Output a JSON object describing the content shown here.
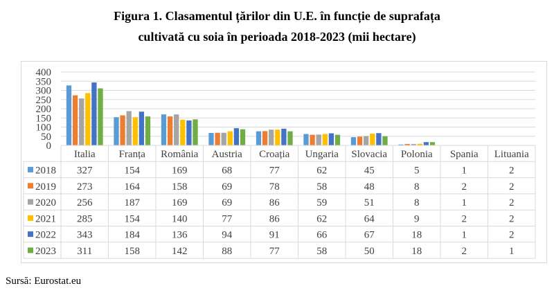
{
  "title_line1": "Figura 1. Clasamentul țărilor din U.E. în funcție de suprafața",
  "title_line2": "cultivată cu soia în perioada 2018-2023 (mii hectare)",
  "source": "Sursă: Eurostat.eu",
  "chart_data": {
    "type": "bar",
    "title": "Figura 1. Clasamentul țărilor din U.E. în funcție de suprafața cultivată cu soia în perioada 2018-2023 (mii hectare)",
    "xlabel": "",
    "ylabel": "",
    "ylim": [
      0,
      400
    ],
    "yticks": [
      "0",
      "50",
      "100",
      "150",
      "200",
      "250",
      "300",
      "350",
      "400"
    ],
    "grid": true,
    "legend": "data-table",
    "categories": [
      "Italia",
      "Franța",
      "România",
      "Austria",
      "Croația",
      "Ungaria",
      "Slovacia",
      "Polonia",
      "Spania",
      "Lituania"
    ],
    "series": [
      {
        "name": "2018",
        "color": "#5b9bd5",
        "values": [
          327,
          154,
          169,
          68,
          77,
          62,
          45,
          5,
          1,
          2
        ]
      },
      {
        "name": "2019",
        "color": "#ed7d31",
        "values": [
          273,
          164,
          158,
          69,
          78,
          58,
          48,
          8,
          2,
          2
        ]
      },
      {
        "name": "2020",
        "color": "#a5a5a5",
        "values": [
          256,
          187,
          169,
          69,
          86,
          59,
          51,
          8,
          1,
          2
        ]
      },
      {
        "name": "2021",
        "color": "#ffc000",
        "values": [
          285,
          154,
          140,
          77,
          86,
          62,
          64,
          9,
          2,
          2
        ]
      },
      {
        "name": "2022",
        "color": "#4472c4",
        "values": [
          343,
          184,
          136,
          94,
          91,
          66,
          67,
          18,
          1,
          2
        ]
      },
      {
        "name": "2023",
        "color": "#70ad47",
        "values": [
          311,
          158,
          142,
          88,
          77,
          58,
          50,
          18,
          2,
          1
        ]
      }
    ]
  }
}
